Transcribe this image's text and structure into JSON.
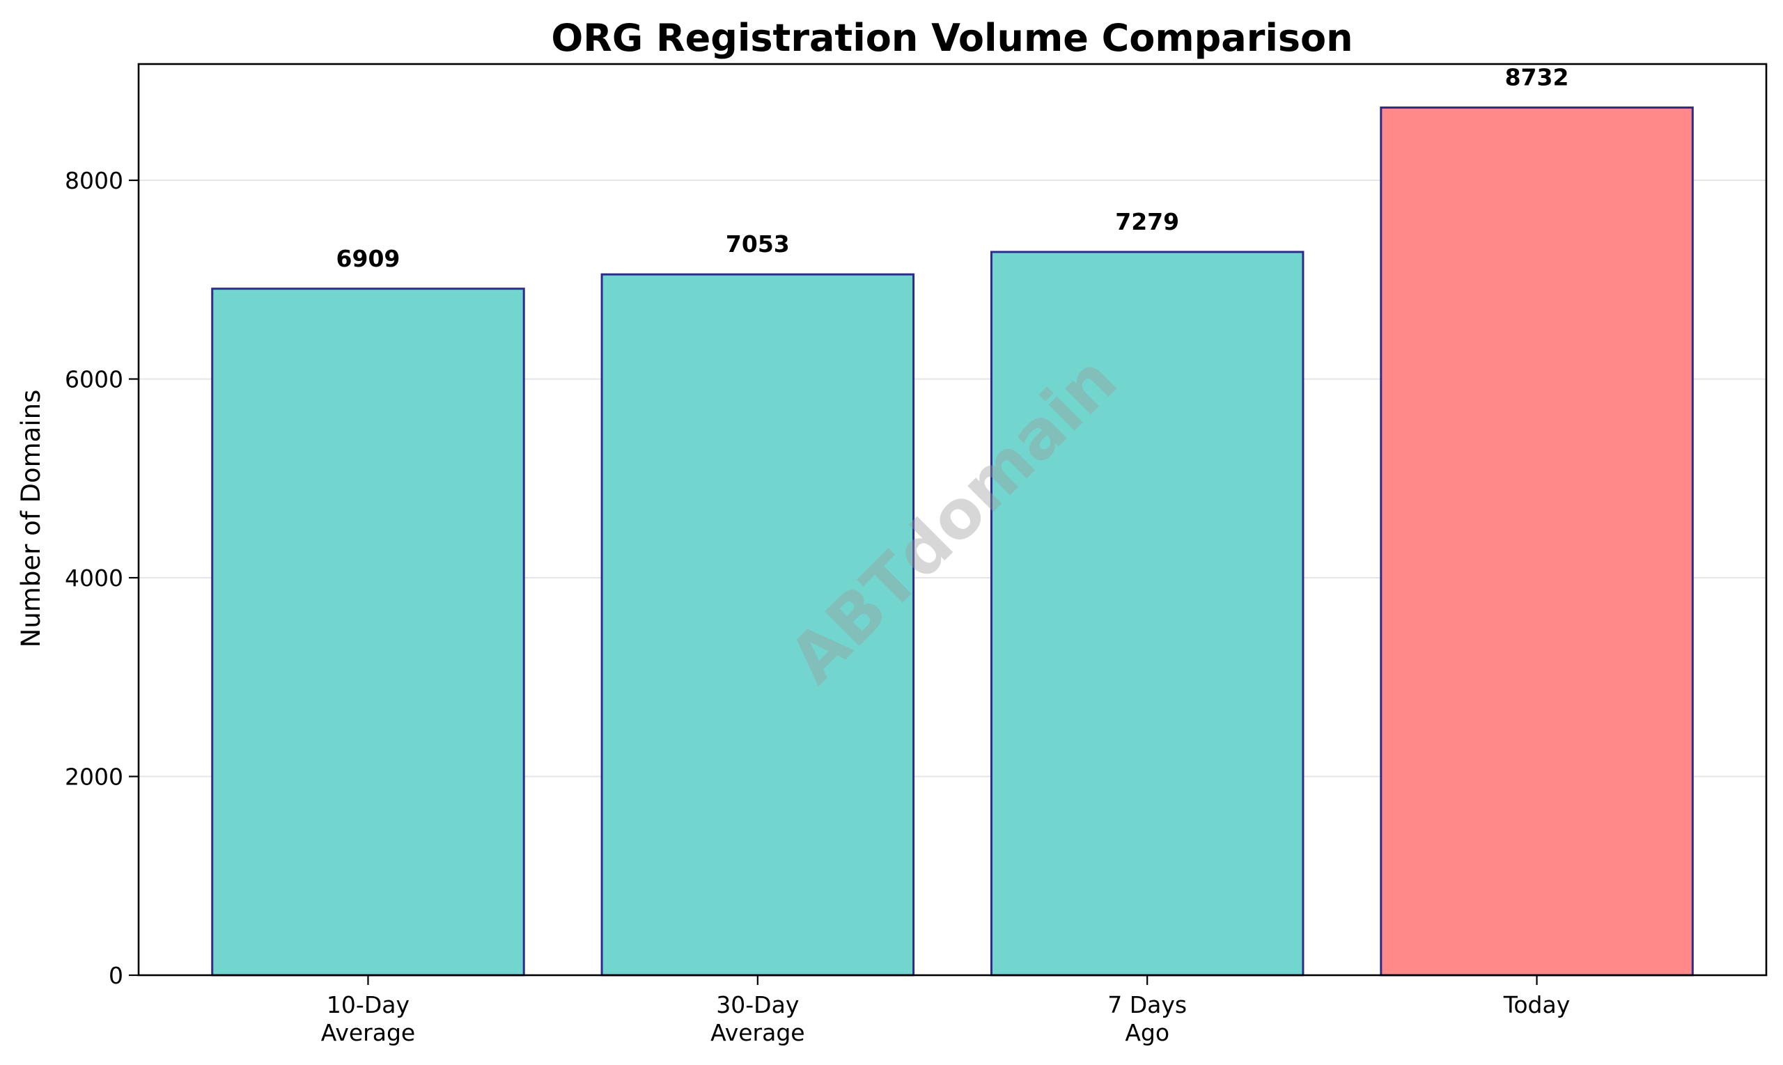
{
  "chart_data": {
    "type": "bar",
    "title": "ORG Registration Volume Comparison",
    "xlabel": "",
    "ylabel": "Number of Domains",
    "categories": [
      "10-Day\nAverage",
      "30-Day\nAverage",
      "7 Days\nAgo",
      "Today"
    ],
    "category_lines": [
      [
        "10-Day",
        "Average"
      ],
      [
        "30-Day",
        "Average"
      ],
      [
        "7 Days",
        "Ago"
      ],
      [
        "Today"
      ]
    ],
    "values": [
      6909,
      7053,
      7279,
      8732
    ],
    "value_labels": [
      "6909",
      "7053",
      "7279",
      "8732"
    ],
    "bar_colors": [
      "#72d6cf",
      "#72d6cf",
      "#72d6cf",
      "#ff8888"
    ],
    "bar_edge_color": "#2b2c8e",
    "ylim": [
      0,
      9170
    ],
    "yticks": [
      0,
      2000,
      4000,
      6000,
      8000
    ],
    "ytick_labels": [
      "0",
      "2000",
      "4000",
      "6000",
      "8000"
    ],
    "grid": {
      "axis": "y",
      "on": true,
      "color": "#e5e5e5"
    },
    "legend": null,
    "watermark": "ABTdomain"
  }
}
